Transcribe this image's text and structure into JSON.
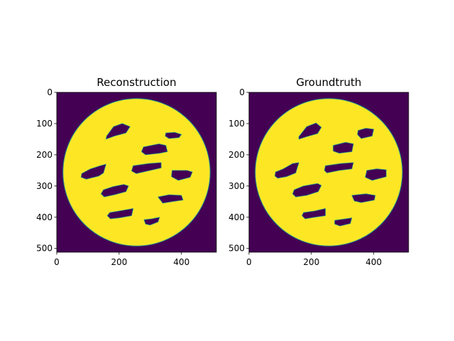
{
  "figure": {
    "background": "#ffffff"
  },
  "chart_data": [
    {
      "type": "heatmap",
      "title": "Reconstruction",
      "xlabel": "",
      "ylabel": "",
      "image_shape": [
        512,
        512
      ],
      "xlim": [
        0,
        512
      ],
      "ylim": [
        512,
        0
      ],
      "x_ticks": [
        0,
        200,
        400
      ],
      "y_ticks": [
        0,
        100,
        200,
        300,
        400,
        500
      ],
      "colormap": "viridis",
      "colors": {
        "background": "#440154",
        "disk": "#fde725",
        "edge": "#21918c"
      },
      "disk": {
        "cx": 256,
        "cy": 256,
        "r": 236
      },
      "holes": [
        [
          [
            160,
            140
          ],
          [
            182,
            110
          ],
          [
            210,
            100
          ],
          [
            235,
            110
          ],
          [
            222,
            130
          ],
          [
            185,
            140
          ],
          [
            158,
            150
          ]
        ],
        [
          [
            350,
            130
          ],
          [
            378,
            128
          ],
          [
            400,
            135
          ],
          [
            392,
            145
          ],
          [
            360,
            148
          ],
          [
            348,
            140
          ]
        ],
        [
          [
            278,
            175
          ],
          [
            328,
            165
          ],
          [
            350,
            170
          ],
          [
            355,
            190
          ],
          [
            330,
            195
          ],
          [
            285,
            200
          ],
          [
            272,
            190
          ]
        ],
        [
          [
            80,
            260
          ],
          [
            108,
            245
          ],
          [
            140,
            235
          ],
          [
            158,
            230
          ],
          [
            150,
            258
          ],
          [
            135,
            268
          ],
          [
            95,
            278
          ],
          [
            78,
            272
          ]
        ],
        [
          [
            245,
            235
          ],
          [
            295,
            228
          ],
          [
            335,
            225
          ],
          [
            335,
            242
          ],
          [
            300,
            250
          ],
          [
            255,
            260
          ],
          [
            240,
            252
          ]
        ],
        [
          [
            370,
            250
          ],
          [
            418,
            250
          ],
          [
            435,
            255
          ],
          [
            428,
            272
          ],
          [
            390,
            282
          ],
          [
            368,
            270
          ]
        ],
        [
          [
            150,
            312
          ],
          [
            180,
            302
          ],
          [
            215,
            295
          ],
          [
            230,
            300
          ],
          [
            222,
            318
          ],
          [
            185,
            328
          ],
          [
            152,
            335
          ],
          [
            142,
            325
          ]
        ],
        [
          [
            325,
            335
          ],
          [
            360,
            328
          ],
          [
            400,
            330
          ],
          [
            405,
            345
          ],
          [
            370,
            350
          ],
          [
            340,
            355
          ]
        ],
        [
          [
            170,
            385
          ],
          [
            200,
            380
          ],
          [
            245,
            372
          ],
          [
            240,
            395
          ],
          [
            200,
            402
          ],
          [
            172,
            405
          ],
          [
            162,
            395
          ]
        ],
        [
          [
            280,
            408
          ],
          [
            305,
            405
          ],
          [
            330,
            400
          ],
          [
            325,
            415
          ],
          [
            300,
            425
          ],
          [
            285,
            422
          ]
        ]
      ]
    },
    {
      "type": "heatmap",
      "title": "Groundtruth",
      "xlabel": "",
      "ylabel": "",
      "image_shape": [
        512,
        512
      ],
      "xlim": [
        0,
        512
      ],
      "ylim": [
        512,
        0
      ],
      "x_ticks": [
        0,
        200,
        400
      ],
      "y_ticks": [
        0,
        100,
        200,
        300,
        400,
        500
      ],
      "colormap": "viridis",
      "colors": {
        "background": "#440154",
        "disk": "#fde725",
        "edge": "#21918c"
      },
      "disk": {
        "cx": 256,
        "cy": 256,
        "r": 236
      },
      "holes": [
        [
          [
            160,
            142
          ],
          [
            185,
            110
          ],
          [
            215,
            98
          ],
          [
            232,
            112
          ],
          [
            220,
            132
          ],
          [
            185,
            142
          ],
          [
            160,
            150
          ]
        ],
        [
          [
            350,
            122
          ],
          [
            375,
            115
          ],
          [
            400,
            118
          ],
          [
            395,
            140
          ],
          [
            360,
            148
          ],
          [
            348,
            135
          ]
        ],
        [
          [
            270,
            170
          ],
          [
            310,
            160
          ],
          [
            335,
            165
          ],
          [
            330,
            190
          ],
          [
            290,
            195
          ],
          [
            270,
            188
          ]
        ],
        [
          [
            85,
            255
          ],
          [
            110,
            245
          ],
          [
            140,
            228
          ],
          [
            160,
            225
          ],
          [
            150,
            258
          ],
          [
            120,
            270
          ],
          [
            92,
            275
          ],
          [
            83,
            268
          ]
        ],
        [
          [
            245,
            235
          ],
          [
            295,
            228
          ],
          [
            335,
            225
          ],
          [
            330,
            245
          ],
          [
            290,
            250
          ],
          [
            250,
            258
          ],
          [
            242,
            250
          ]
        ],
        [
          [
            378,
            250
          ],
          [
            410,
            245
          ],
          [
            440,
            248
          ],
          [
            440,
            270
          ],
          [
            395,
            282
          ],
          [
            373,
            272
          ]
        ],
        [
          [
            145,
            312
          ],
          [
            175,
            300
          ],
          [
            220,
            292
          ],
          [
            232,
            298
          ],
          [
            222,
            318
          ],
          [
            185,
            330
          ],
          [
            150,
            335
          ],
          [
            140,
            325
          ]
        ],
        [
          [
            330,
            330
          ],
          [
            375,
            325
          ],
          [
            405,
            330
          ],
          [
            402,
            345
          ],
          [
            360,
            353
          ],
          [
            338,
            348
          ]
        ],
        [
          [
            175,
            385
          ],
          [
            210,
            380
          ],
          [
            245,
            372
          ],
          [
            245,
            395
          ],
          [
            210,
            400
          ],
          [
            180,
            405
          ],
          [
            170,
            395
          ]
        ],
        [
          [
            275,
            410
          ],
          [
            310,
            405
          ],
          [
            330,
            402
          ],
          [
            325,
            420
          ],
          [
            292,
            428
          ],
          [
            275,
            422
          ]
        ]
      ]
    }
  ]
}
